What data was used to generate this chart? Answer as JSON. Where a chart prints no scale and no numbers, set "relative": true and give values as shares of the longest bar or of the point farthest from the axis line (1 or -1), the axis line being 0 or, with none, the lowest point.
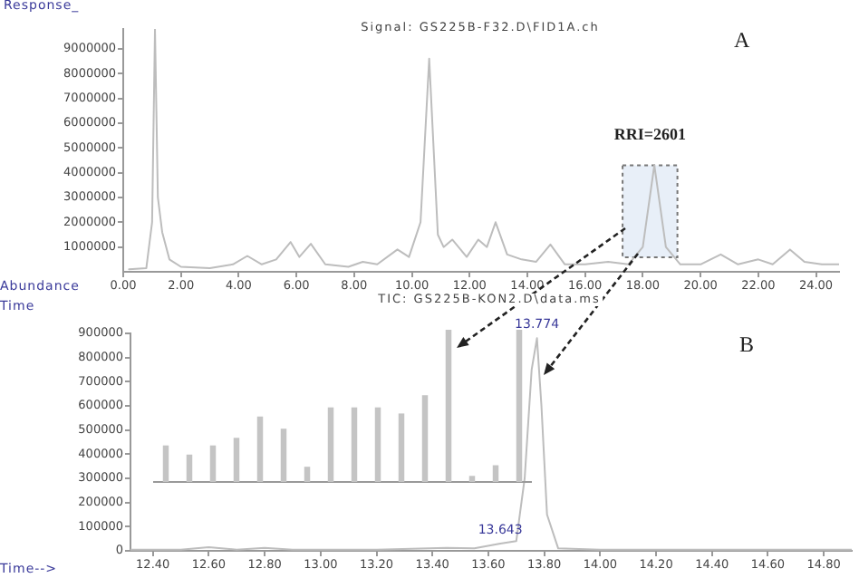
{
  "chart_data": [
    {
      "type": "line",
      "title": "Signal: GS225B-F32.D\\FID1A.ch",
      "ylabel": "Response_",
      "xlabel": "Time",
      "color": "#bdbdbd",
      "x": [
        0.2,
        0.8,
        1.0,
        1.1,
        1.2,
        1.35,
        1.6,
        2.0,
        3.0,
        3.8,
        4.3,
        4.8,
        5.3,
        5.8,
        6.1,
        6.5,
        7.0,
        7.8,
        8.3,
        8.8,
        9.5,
        9.9,
        10.3,
        10.6,
        10.9,
        11.1,
        11.4,
        11.9,
        12.3,
        12.6,
        12.9,
        13.3,
        13.8,
        14.3,
        14.8,
        15.3,
        16.0,
        16.8,
        17.5,
        18.0,
        18.4,
        18.8,
        19.3,
        20.0,
        20.7,
        21.3,
        22.0,
        22.5,
        23.1,
        23.6,
        24.2,
        24.8
      ],
      "values": [
        100000,
        150000,
        2000000,
        9800000,
        3000000,
        1600000,
        500000,
        200000,
        150000,
        300000,
        640000,
        300000,
        500000,
        1200000,
        600000,
        1130000,
        300000,
        200000,
        400000,
        300000,
        900000,
        600000,
        2000000,
        8600000,
        1500000,
        1000000,
        1300000,
        600000,
        1300000,
        1000000,
        2000000,
        700000,
        500000,
        400000,
        1100000,
        300000,
        300000,
        400000,
        300000,
        1000000,
        4300000,
        1000000,
        300000,
        300000,
        700000,
        300000,
        500000,
        300000,
        900000,
        400000,
        300000,
        300000
      ],
      "xlim": [
        0,
        24.8
      ],
      "ylim": [
        0,
        9800000
      ],
      "xticks": [
        {
          "value": 0,
          "label": "0.00"
        },
        {
          "value": 2,
          "label": "2.00"
        },
        {
          "value": 4,
          "label": "4.00"
        },
        {
          "value": 6,
          "label": "6.00"
        },
        {
          "value": 8,
          "label": "8.00"
        },
        {
          "value": 10,
          "label": "10.00"
        },
        {
          "value": 12,
          "label": "12.00"
        },
        {
          "value": 14,
          "label": "14.00"
        },
        {
          "value": 16,
          "label": "16.00"
        },
        {
          "value": 18,
          "label": "18.00"
        },
        {
          "value": 20,
          "label": "20.00"
        },
        {
          "value": 22,
          "label": "22.00"
        },
        {
          "value": 24,
          "label": "24.00"
        }
      ],
      "yticks": [
        1000000,
        2000000,
        3000000,
        4000000,
        5000000,
        6000000,
        7000000,
        8000000,
        9000000
      ],
      "bands": [
        {
          "axis": "x",
          "from": 17.3,
          "to": 19.2,
          "label": "RRI=2601",
          "color": "#e8eff8"
        }
      ],
      "annotations": [
        "A"
      ],
      "grid": false,
      "legend": false
    },
    {
      "type": "line",
      "title": "TIC: GS225B-KON2.D\\data.ms",
      "ylabel": "Abundance",
      "xlabel": "Time-->",
      "color": "#bdbdbd",
      "x": [
        12.32,
        12.5,
        12.6,
        12.7,
        12.8,
        12.9,
        13.2,
        13.45,
        13.55,
        13.643,
        13.7,
        13.73,
        13.755,
        13.774,
        13.79,
        13.81,
        13.85,
        14.0,
        14.4,
        14.9
      ],
      "values": [
        5000,
        5000,
        15000,
        5000,
        12000,
        5000,
        5000,
        12000,
        10000,
        30000,
        40000,
        300000,
        750000,
        880000,
        600000,
        150000,
        10000,
        5000,
        5000,
        5000
      ],
      "xlim": [
        12.32,
        14.9
      ],
      "ylim": [
        0,
        900000
      ],
      "xticks": [
        {
          "value": 12.4,
          "label": "12.40"
        },
        {
          "value": 12.6,
          "label": "12.60"
        },
        {
          "value": 12.8,
          "label": "12.80"
        },
        {
          "value": 13,
          "label": "13.00"
        },
        {
          "value": 13.2,
          "label": "13.20"
        },
        {
          "value": 13.4,
          "label": "13.40"
        },
        {
          "value": 13.6,
          "label": "13.60"
        },
        {
          "value": 13.8,
          "label": "13.80"
        },
        {
          "value": 14,
          "label": "14.00"
        },
        {
          "value": 14.2,
          "label": "14.20"
        },
        {
          "value": 14.4,
          "label": "14.40"
        },
        {
          "value": 14.6,
          "label": "14.60"
        },
        {
          "value": 14.8,
          "label": "14.80"
        }
      ],
      "yticks": [
        0,
        100000,
        200000,
        300000,
        400000,
        500000,
        600000,
        700000,
        800000,
        900000
      ],
      "annotations": [
        "B",
        {
          "text": "13.774",
          "x": 13.774,
          "y": 880000
        },
        {
          "text": "13.643",
          "x": 13.643,
          "y": 30000
        }
      ],
      "grid": false,
      "legend": false
    },
    {
      "type": "bar",
      "relative": true,
      "color": "#c4c4c4",
      "legend": false,
      "categories": [
        null,
        null,
        null,
        null,
        null,
        null,
        null,
        null,
        null,
        null,
        null,
        null,
        null,
        null,
        null,
        null
      ],
      "values": [
        0.24,
        0.18,
        0.24,
        0.29,
        0.43,
        0.35,
        0.1,
        0.49,
        0.49,
        0.49,
        0.45,
        0.57,
        1,
        0.04,
        0.11,
        1
      ]
    }
  ]
}
